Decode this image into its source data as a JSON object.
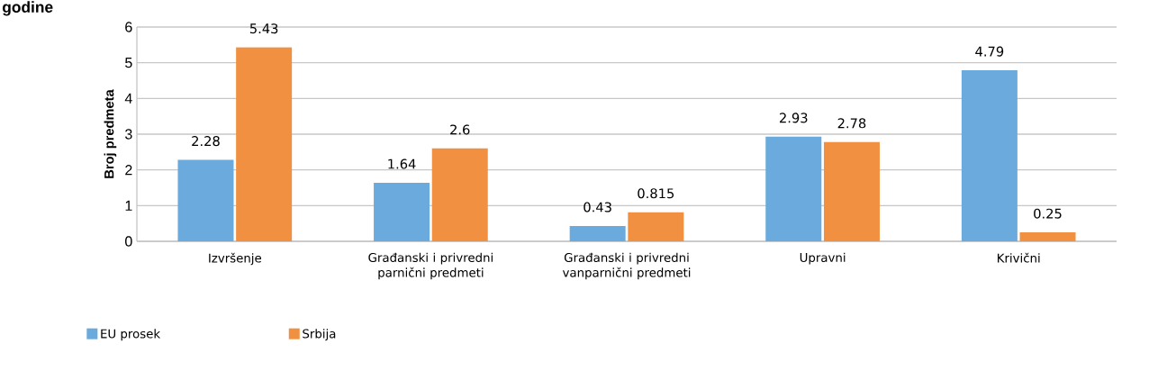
{
  "chart_data": {
    "type": "bar",
    "title": "godine",
    "ylabel": "Broj predmeta",
    "categories": [
      "Izvršenje",
      "Građanski i privredni parnični predmeti",
      "Građanski i privredni vanparnični predmeti",
      "Upravni",
      "Krivični"
    ],
    "series": [
      {
        "name": "EU prosek",
        "color": "#6aaadc",
        "values": [
          2.28,
          1.64,
          0.43,
          2.93,
          4.79
        ]
      },
      {
        "name": "Srbija",
        "color": "#f09040",
        "values": [
          5.43,
          2.6,
          0.815,
          2.78,
          0.25
        ]
      }
    ],
    "ylim": [
      0,
      6
    ],
    "yticks": [
      0,
      1,
      2,
      3,
      4,
      5,
      6
    ],
    "grid": "y",
    "legend": "bottom left",
    "data_labels": true
  }
}
